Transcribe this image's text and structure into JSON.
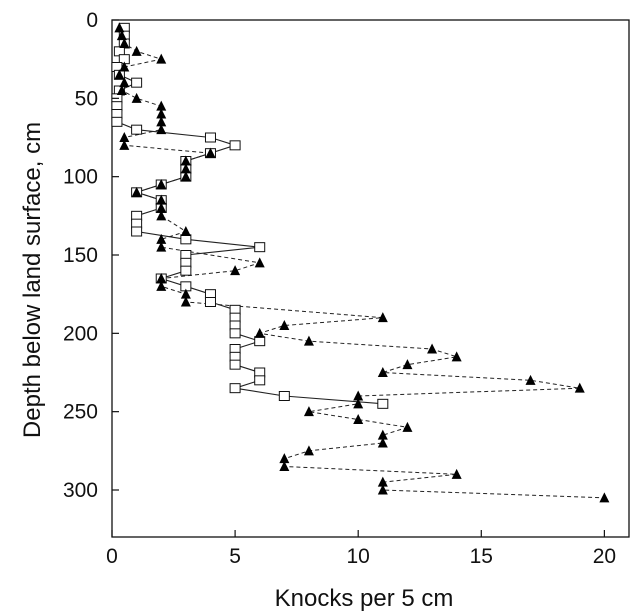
{
  "chart_data": {
    "type": "scatter",
    "xlabel": "Knocks per 5 cm",
    "ylabel": "Depth below land surface, cm",
    "xlim": [
      0,
      21
    ],
    "ylim": [
      0,
      330
    ],
    "y_inverted": true,
    "xticks": [
      0,
      5,
      10,
      15,
      20
    ],
    "yticks": [
      0,
      50,
      100,
      150,
      200,
      250,
      300
    ],
    "grid": false,
    "series": [
      {
        "marker": "open-square",
        "line": "solid",
        "points": [
          [
            0.5,
            5
          ],
          [
            0.5,
            10
          ],
          [
            0.5,
            15
          ],
          [
            0.3,
            20
          ],
          [
            0.5,
            25
          ],
          [
            0.2,
            30
          ],
          [
            0.3,
            35
          ],
          [
            1.0,
            40
          ],
          [
            0.3,
            45
          ],
          [
            0.2,
            50
          ],
          [
            0.2,
            55
          ],
          [
            0.2,
            60
          ],
          [
            0.2,
            65
          ],
          [
            1.0,
            70
          ],
          [
            4.0,
            75
          ],
          [
            5.0,
            80
          ],
          [
            4.0,
            85
          ],
          [
            3.0,
            90
          ],
          [
            3.0,
            95
          ],
          [
            3.0,
            100
          ],
          [
            2.0,
            105
          ],
          [
            1.0,
            110
          ],
          [
            2.0,
            115
          ],
          [
            2.0,
            120
          ],
          [
            1.0,
            125
          ],
          [
            1.0,
            130
          ],
          [
            1.0,
            135
          ],
          [
            3.0,
            140
          ],
          [
            6.0,
            145
          ],
          [
            3.0,
            150
          ],
          [
            3.0,
            155
          ],
          [
            3.0,
            160
          ],
          [
            2.0,
            165
          ],
          [
            3.0,
            170
          ],
          [
            4.0,
            175
          ],
          [
            4.0,
            180
          ],
          [
            5.0,
            185
          ],
          [
            5.0,
            190
          ],
          [
            5.0,
            195
          ],
          [
            5.0,
            200
          ],
          [
            6.0,
            205
          ],
          [
            5.0,
            210
          ],
          [
            5.0,
            215
          ],
          [
            5.0,
            220
          ],
          [
            6.0,
            225
          ],
          [
            6.0,
            230
          ],
          [
            5.0,
            235
          ],
          [
            7.0,
            240
          ],
          [
            11.0,
            245
          ]
        ]
      },
      {
        "marker": "filled-triangle",
        "line": "dashed",
        "points": [
          [
            0.3,
            5
          ],
          [
            0.4,
            10
          ],
          [
            0.5,
            15
          ],
          [
            1.0,
            20
          ],
          [
            2.0,
            25
          ],
          [
            0.5,
            30
          ],
          [
            0.3,
            35
          ],
          [
            0.5,
            40
          ],
          [
            0.4,
            45
          ],
          [
            1.0,
            50
          ],
          [
            2.0,
            55
          ],
          [
            2.0,
            60
          ],
          [
            2.0,
            65
          ],
          [
            2.0,
            70
          ],
          [
            0.5,
            75
          ],
          [
            0.5,
            80
          ],
          [
            4.0,
            85
          ],
          [
            3.0,
            90
          ],
          [
            3.0,
            95
          ],
          [
            3.0,
            100
          ],
          [
            2.0,
            105
          ],
          [
            1.0,
            110
          ],
          [
            2.0,
            115
          ],
          [
            2.0,
            120
          ],
          [
            2.0,
            125
          ],
          [
            3.0,
            135
          ],
          [
            2.0,
            140
          ],
          [
            2.0,
            145
          ],
          [
            6.0,
            155
          ],
          [
            5.0,
            160
          ],
          [
            2.0,
            165
          ],
          [
            2.0,
            170
          ],
          [
            3.0,
            175
          ],
          [
            3.0,
            180
          ],
          [
            11.0,
            190
          ],
          [
            7.0,
            195
          ],
          [
            6.0,
            200
          ],
          [
            8.0,
            205
          ],
          [
            13.0,
            210
          ],
          [
            14.0,
            215
          ],
          [
            12.0,
            220
          ],
          [
            11.0,
            225
          ],
          [
            17.0,
            230
          ],
          [
            19.0,
            235
          ],
          [
            10.0,
            240
          ],
          [
            10.0,
            245
          ],
          [
            8.0,
            250
          ],
          [
            10.0,
            255
          ],
          [
            12.0,
            260
          ],
          [
            11.0,
            265
          ],
          [
            11.0,
            270
          ],
          [
            8.0,
            275
          ],
          [
            7.0,
            280
          ],
          [
            7.0,
            285
          ],
          [
            14.0,
            290
          ],
          [
            11.0,
            295
          ],
          [
            11.0,
            300
          ],
          [
            20.0,
            305
          ]
        ]
      }
    ]
  }
}
